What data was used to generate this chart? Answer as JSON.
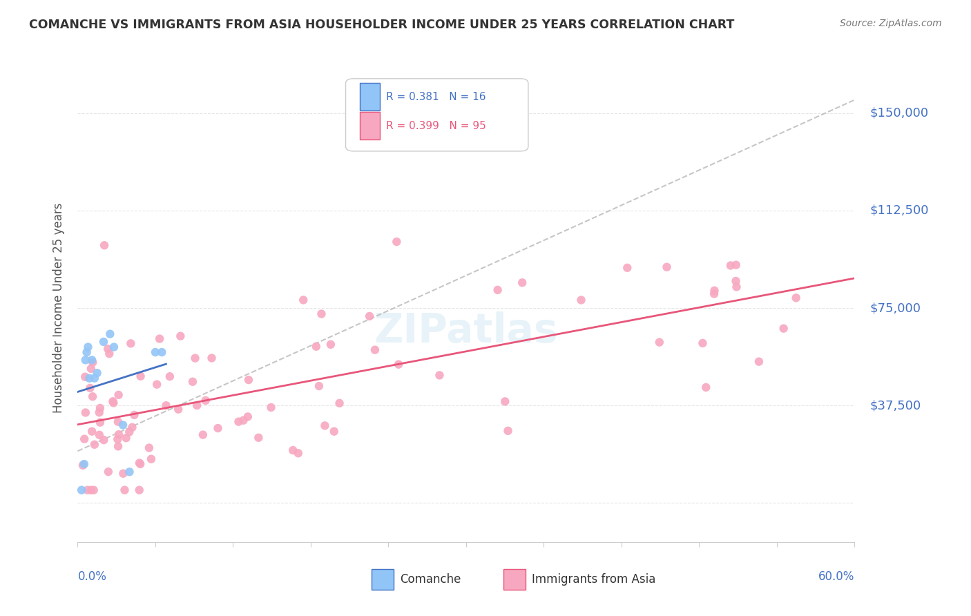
{
  "title": "COMANCHE VS IMMIGRANTS FROM ASIA HOUSEHOLDER INCOME UNDER 25 YEARS CORRELATION CHART",
  "source": "Source: ZipAtlas.com",
  "ylabel": "Householder Income Under 25 years",
  "xlim": [
    0.0,
    0.6
  ],
  "ylim": [
    -15000,
    165000
  ],
  "comanche_R": 0.381,
  "comanche_N": 16,
  "asia_R": 0.399,
  "asia_N": 95,
  "comanche_color": "#92C5F7",
  "asia_color": "#F7A8C0",
  "comanche_line_color": "#4472C4",
  "asia_line_color": "#E8567A",
  "background_color": "#FFFFFF",
  "grid_color": "#E0E0E0",
  "ytick_vals": [
    0,
    37500,
    75000,
    112500,
    150000
  ],
  "ytick_labels": [
    "",
    "$37,500",
    "$75,000",
    "$112,500",
    "$150,000"
  ],
  "watermark": "ZIPatlas"
}
